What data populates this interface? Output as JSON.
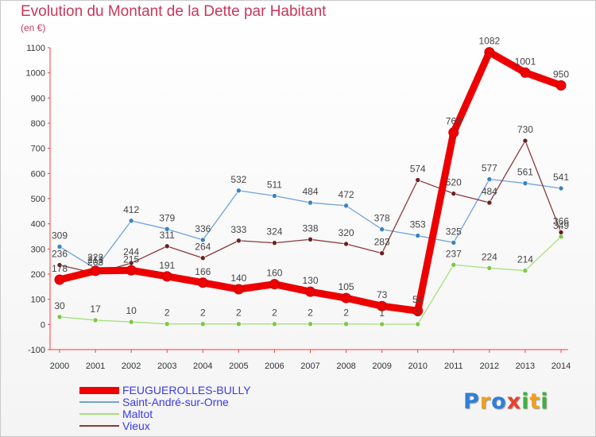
{
  "title": "Evolution du Montant de la Dette par Habitant",
  "unit": "(en €)",
  "logo": {
    "letters": [
      {
        "ch": "P",
        "color": "#2f7fd8"
      },
      {
        "ch": "r",
        "color": "#f0a020"
      },
      {
        "ch": "o",
        "color": "#2f7fd8"
      },
      {
        "ch": "x",
        "color": "#e84030"
      },
      {
        "ch": "i",
        "color": "#40b040"
      },
      {
        "ch": "t",
        "color": "#f0a020"
      },
      {
        "ch": "i",
        "color": "#40b040"
      }
    ]
  },
  "chart_data": {
    "type": "line",
    "title": "Evolution du Montant de la Dette par Habitant",
    "ylabel": "(en €)",
    "xlabel": "",
    "categories": [
      "2000",
      "2001",
      "2002",
      "2003",
      "2004",
      "2005",
      "2006",
      "2007",
      "2008",
      "2009",
      "2010",
      "2011",
      "2012",
      "2013",
      "2014"
    ],
    "ylim": [
      -100,
      1100
    ],
    "yticks": [
      -100,
      0,
      100,
      200,
      300,
      400,
      500,
      600,
      700,
      800,
      900,
      1000,
      1100
    ],
    "grid": false,
    "legend_position": "bottom-left",
    "series": [
      {
        "name": "FEUGUEROLLES-BULLY",
        "color": "#ee0000",
        "marker": "#ee0000",
        "values": [
          178,
          213,
          215,
          191,
          166,
          140,
          160,
          130,
          105,
          73,
          54,
          763,
          1082,
          1001,
          950
        ]
      },
      {
        "name": "Saint-André-sur-Orne",
        "color": "#6fa3d8",
        "marker": "#3a82c4",
        "values": [
          309,
          222,
          412,
          379,
          336,
          532,
          511,
          484,
          472,
          378,
          353,
          325,
          577,
          561,
          541
        ]
      },
      {
        "name": "Maltot",
        "color": "#a6e07a",
        "marker": "#7ac943",
        "values": [
          30,
          17,
          10,
          2,
          2,
          2,
          2,
          2,
          2,
          1,
          1,
          237,
          224,
          214,
          349
        ]
      },
      {
        "name": "Vieux",
        "color": "#8a3a3a",
        "marker": "#6b2020",
        "values": [
          236,
          203,
          244,
          311,
          264,
          333,
          324,
          338,
          320,
          283,
          574,
          520,
          484,
          730,
          366
        ]
      }
    ]
  }
}
